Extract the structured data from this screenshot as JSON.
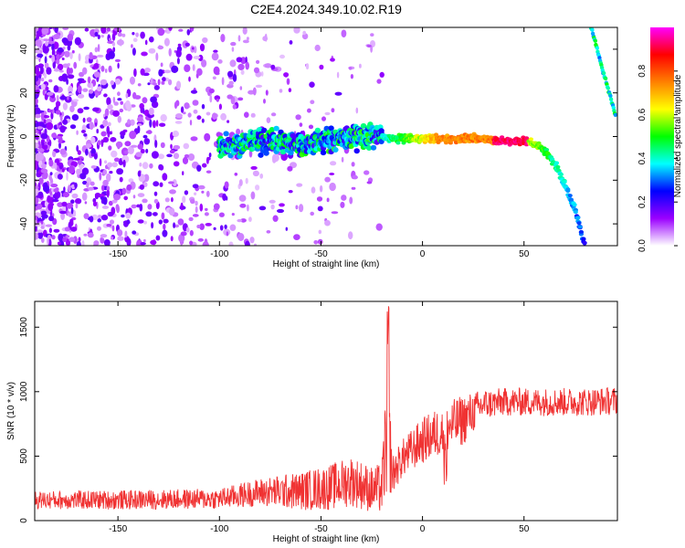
{
  "title": "C2E4.2024.349.10.02.R19",
  "chart_data": [
    {
      "type": "heatmap",
      "xlabel": "Height of straight line (km)",
      "ylabel": "Frequency (Hz)",
      "xlim": [
        -191,
        96
      ],
      "ylim": [
        -50,
        50
      ],
      "x_ticks": [
        -150,
        -100,
        -50,
        0,
        50
      ],
      "y_ticks": [
        -40,
        -20,
        0,
        20,
        40
      ],
      "colorbar": {
        "label": "Normalized spectral amplitude",
        "range": [
          0,
          1
        ],
        "ticks": [
          "0.0",
          "0.2",
          "0.4",
          "0.6",
          "0.8"
        ],
        "colors": [
          "#ffffff",
          "#9b00ff",
          "#0000ff",
          "#00ffff",
          "#00ff00",
          "#ffff00",
          "#ff8000",
          "#ff0000",
          "#ff00ff"
        ]
      },
      "ridge": {
        "x": [
          -100,
          -90,
          -80,
          -70,
          -60,
          -50,
          -40,
          -30,
          -25,
          -20,
          -15,
          -10,
          0,
          10,
          20,
          30,
          40,
          45,
          50,
          55,
          60,
          65,
          70,
          75,
          80
        ],
        "y": [
          -4,
          -3,
          -2,
          -2,
          -4,
          -2,
          -1,
          0,
          0,
          0,
          -1,
          -1,
          -1,
          -1,
          -1,
          -1,
          -2,
          -2,
          -2,
          -3,
          -6,
          -12,
          -22,
          -33,
          -50
        ]
      },
      "aliased_ridge": {
        "x": [
          83,
          86,
          89,
          92,
          95
        ],
        "y": [
          50,
          40,
          30,
          20,
          10
        ]
      },
      "grid": false
    },
    {
      "type": "line",
      "xlabel": "Height of straight line (km)",
      "ylabel": "SNR (10 * v/v)",
      "xlim": [
        -191,
        96
      ],
      "ylim": [
        0,
        1700
      ],
      "x_ticks": [
        -150,
        -100,
        -50,
        0,
        50
      ],
      "y_ticks": [
        0,
        500,
        1000,
        1500
      ],
      "color": "#f03232",
      "envelope": {
        "x": [
          -191,
          -150,
          -100,
          -80,
          -60,
          -45,
          -35,
          -25,
          -20,
          -17,
          -15,
          -10,
          0,
          10,
          20,
          30,
          40,
          60,
          80,
          96
        ],
        "mean": [
          160,
          160,
          170,
          220,
          230,
          260,
          310,
          240,
          250,
          800,
          350,
          480,
          620,
          700,
          780,
          900,
          920,
          920,
          920,
          930
        ],
        "spread": [
          70,
          75,
          80,
          110,
          150,
          180,
          200,
          180,
          200,
          600,
          150,
          150,
          180,
          200,
          200,
          120,
          110,
          110,
          110,
          110
        ]
      },
      "grid": false
    }
  ]
}
